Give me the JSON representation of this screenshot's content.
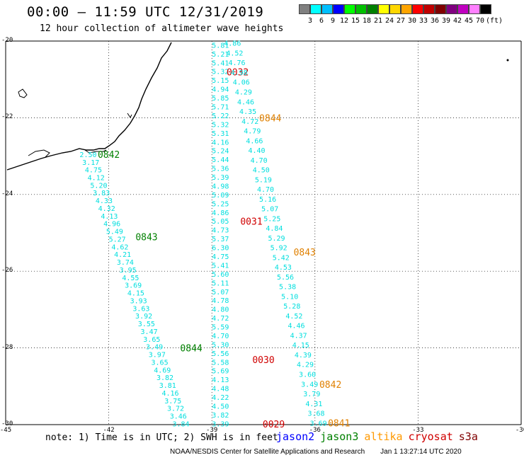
{
  "header": {
    "title": "00:00 — 11:59 UTC 12/31/2019",
    "subtitle": "12 hour collection of altimeter wave heights"
  },
  "color_scale": {
    "unit": "(ft)",
    "colors": [
      "#808080",
      "#00ffff",
      "#00bfff",
      "#0000ff",
      "#00ff00",
      "#00c000",
      "#008000",
      "#ffff00",
      "#ffd700",
      "#ffa500",
      "#ff0000",
      "#c00000",
      "#800000",
      "#800080",
      "#c000c0",
      "#ff80ff",
      "#000000"
    ],
    "labels": [
      "3",
      "6",
      "9",
      "12",
      "15",
      "18",
      "21",
      "24",
      "27",
      "30",
      "33",
      "36",
      "39",
      "42",
      "45",
      "70"
    ]
  },
  "axes": {
    "lat_labels": [
      "-20",
      "-22",
      "-24",
      "-26",
      "-28",
      "-30"
    ],
    "lon_labels": [
      "-45",
      "-42",
      "-39",
      "-36",
      "-33",
      "-30"
    ]
  },
  "chart_data": {
    "type": "scatter",
    "map_extent": {
      "lon": [
        -45,
        -30
      ],
      "lat": [
        -30,
        -20
      ]
    },
    "tracks": [
      {
        "satellite": "jason3",
        "color": "#008000",
        "pass_labels": [
          {
            "text": "0842",
            "lon": -42.0,
            "lat": -22.95
          },
          {
            "text": "0843",
            "lon": -40.9,
            "lat": -25.1
          },
          {
            "text": "0844",
            "lon": -39.6,
            "lat": -28.0
          }
        ],
        "start": {
          "lon": -42.6,
          "lat": -22.95
        },
        "end": {
          "lon": -39.9,
          "lat": -29.97
        },
        "swh_ft": [
          "2.50",
          "3.17",
          "4.75",
          "4.12",
          "5.20",
          "3.83",
          "4.33",
          "4.32",
          "4.13",
          "4.96",
          "5.49",
          "5.27",
          "4.62",
          "4.21",
          "3.74",
          "3.95",
          "4.55",
          "3.69",
          "4.15",
          "3.93",
          "3.63",
          "3.92",
          "3.55",
          "3.47",
          "3.65",
          "3.49",
          "3.97",
          "3.65",
          "4.69",
          "3.82",
          "3.81",
          "4.16",
          "3.75",
          "3.72",
          "3.46",
          "3.84"
        ]
      },
      {
        "satellite": "cryosat",
        "color": "#d00000",
        "pass_labels": [
          {
            "text": "0032",
            "lon": -38.25,
            "lat": -20.8
          },
          {
            "text": "0031",
            "lon": -37.85,
            "lat": -24.7
          },
          {
            "text": "0030",
            "lon": -37.5,
            "lat": -28.3
          },
          {
            "text": "0029",
            "lon": -37.2,
            "lat": -29.98
          }
        ],
        "start": {
          "lon": -38.75,
          "lat": -20.1
        },
        "end": {
          "lon": -38.75,
          "lat": -29.97
        },
        "swh_ft": [
          "5.81",
          "5.21",
          "5.41",
          "5.32",
          "5.15",
          "4.94",
          "5.85",
          "5.71",
          "5.22",
          "5.32",
          "5.31",
          "4.16",
          "5.24",
          "5.44",
          "5.36",
          "5.39",
          "4.98",
          "5.09",
          "5.25",
          "4.86",
          "5.05",
          "4.73",
          "5.37",
          "6.30",
          "4.75",
          "5.41",
          "5.60",
          "5.11",
          "5.07",
          "4.78",
          "4.80",
          "4.72",
          "5.59",
          "4.70",
          "5.30",
          "5.56",
          "5.58",
          "5.69",
          "4.13",
          "4.48",
          "4.22",
          "4.50",
          "3.82",
          "3.39"
        ]
      },
      {
        "satellite": "altika",
        "color": "#e08000",
        "pass_labels": [
          {
            "text": "0844",
            "lon": -37.3,
            "lat": -22.0
          },
          {
            "text": "0843",
            "lon": -36.3,
            "lat": -25.5
          },
          {
            "text": "0842",
            "lon": -35.55,
            "lat": -28.95
          },
          {
            "text": "0841",
            "lon": -35.3,
            "lat": -29.95
          }
        ],
        "start": {
          "lon": -38.4,
          "lat": -20.05
        },
        "end": {
          "lon": -35.9,
          "lat": -29.95
        },
        "swh_ft": [
          "4.86",
          "4.52",
          "4.76",
          "4.98",
          "4.06",
          "4.29",
          "4.46",
          "4.35",
          "4.72",
          "4.79",
          "4.66",
          "4.40",
          "4.70",
          "4.50",
          "5.19",
          "4.70",
          "5.16",
          "5.07",
          "5.25",
          "4.84",
          "5.29",
          "5.92",
          "5.42",
          "4.53",
          "5.56",
          "5.38",
          "5.10",
          "5.28",
          "4.52",
          "4.46",
          "4.37",
          "4.15",
          "4.39",
          "4.29",
          "3.60",
          "3.49",
          "3.79",
          "4.31",
          "3.68",
          "3.69"
        ]
      }
    ]
  },
  "footer": {
    "note": "note: 1) Time is in UTC; 2) SWH is in feet",
    "legend": [
      {
        "name": "jason2",
        "color": "#0000ff"
      },
      {
        "name": "jason3",
        "color": "#008000"
      },
      {
        "name": "altika",
        "color": "#ff9900"
      },
      {
        "name": "cryosat",
        "color": "#d00000"
      },
      {
        "name": "s3a",
        "color": "#800000"
      }
    ],
    "credit": "NOAA/NESDIS Center for Satellite Applications and Research",
    "timestamp": "Jan  1 13:27:14 UTC 2020"
  }
}
